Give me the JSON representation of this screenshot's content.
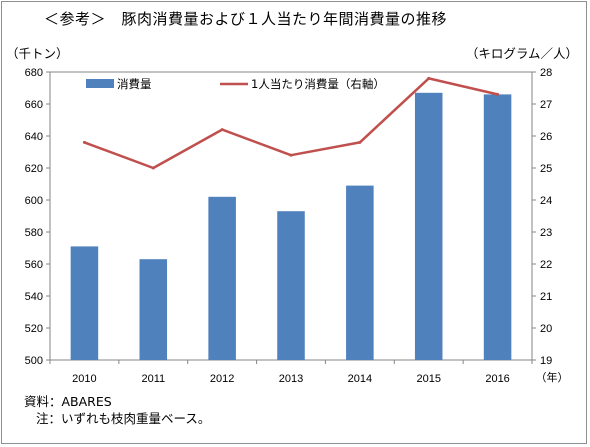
{
  "title": "＜参考＞　豚肉消費量および１人当たり年間消費量の推移",
  "source": "資料：ABARES",
  "note": "注：いずれも枝肉重量ベース。",
  "chart_data": {
    "type": "bar",
    "categories": [
      "2010",
      "2011",
      "2012",
      "2013",
      "2014",
      "2015",
      "2016"
    ],
    "x_unit_label": "（年）",
    "y_left": {
      "label": "（千トン）",
      "lim": [
        500,
        680
      ],
      "ticks": [
        500,
        520,
        540,
        560,
        580,
        600,
        620,
        640,
        660,
        680
      ]
    },
    "y_right": {
      "label": "（キログラム／人）",
      "lim": [
        19,
        28
      ],
      "ticks": [
        19,
        20,
        21,
        22,
        23,
        24,
        25,
        26,
        27,
        28
      ]
    },
    "grid": false,
    "legend_position": "top",
    "series": [
      {
        "name": "消費量",
        "type": "bar",
        "axis": "left",
        "color": "#4f81bd",
        "values": [
          571,
          563,
          602,
          593,
          609,
          667,
          666
        ]
      },
      {
        "name": "1人当たり消費量（右軸）",
        "type": "line",
        "axis": "right",
        "color": "#c0504d",
        "values": [
          25.8,
          25.0,
          26.2,
          25.4,
          25.8,
          27.8,
          27.3
        ]
      }
    ]
  }
}
